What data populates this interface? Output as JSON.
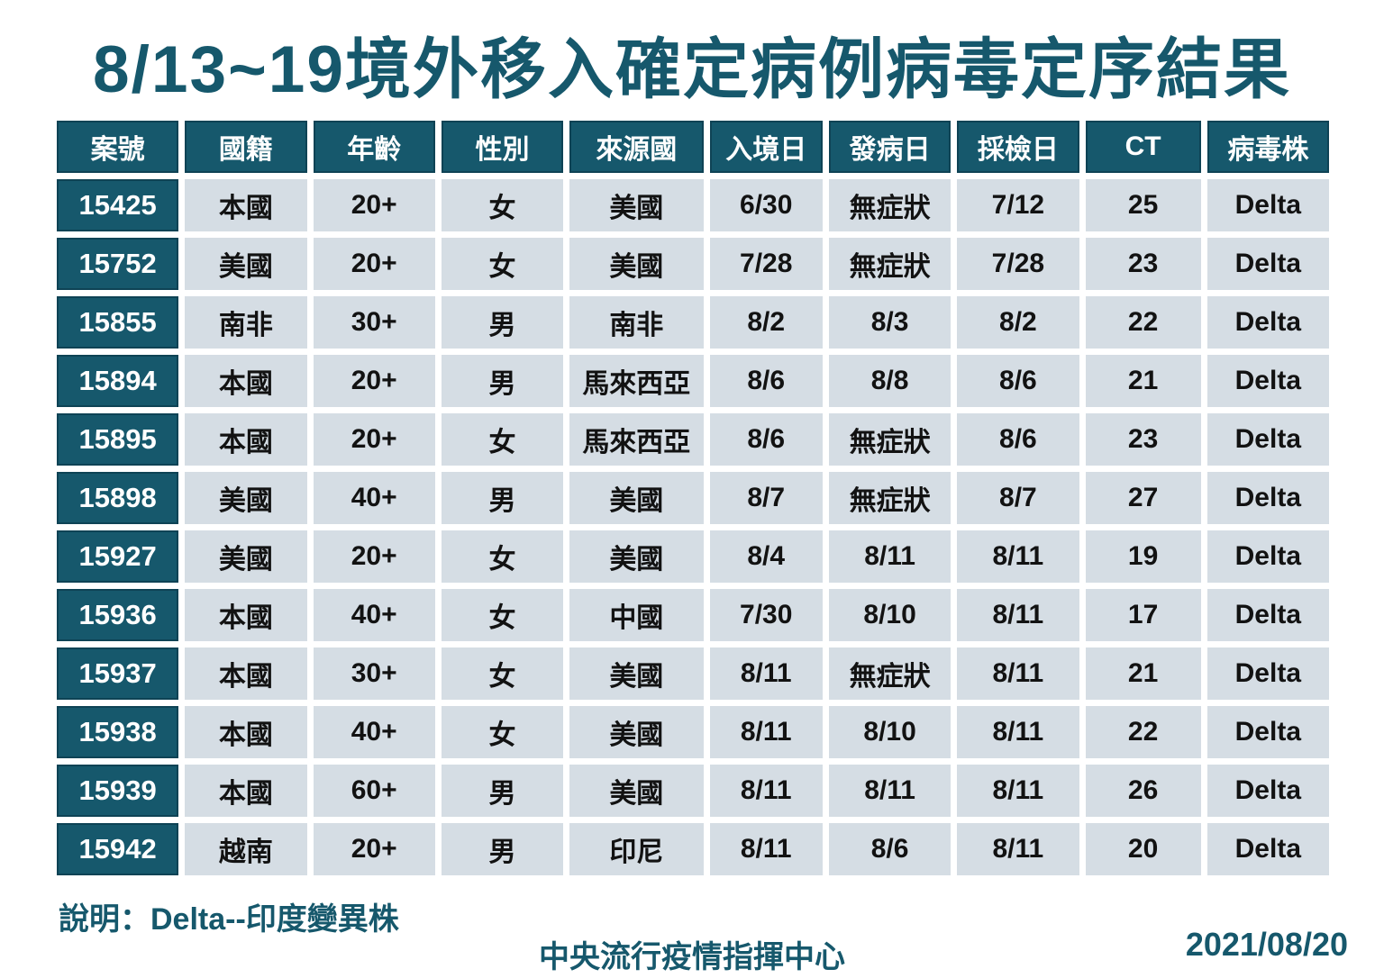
{
  "page": {
    "title": "8/13~19境外移入確定病例病毒定序結果",
    "note": "說明：Delta--印度變異株",
    "org": "中央流行疫情指揮中心",
    "date": "2021/08/20"
  },
  "colors": {
    "teal": "#16586c",
    "teal_edge": "#0e4355",
    "cell_bg": "#d5dde4",
    "text": "#121212",
    "background": "#ffffff"
  },
  "table": {
    "headers": [
      "案號",
      "國籍",
      "年齡",
      "性別",
      "來源國",
      "入境日",
      "發病日",
      "採檢日",
      "CT",
      "病毒株"
    ],
    "rows": [
      [
        "15425",
        "本國",
        "20+",
        "女",
        "美國",
        "6/30",
        "無症狀",
        "7/12",
        "25",
        "Delta"
      ],
      [
        "15752",
        "美國",
        "20+",
        "女",
        "美國",
        "7/28",
        "無症狀",
        "7/28",
        "23",
        "Delta"
      ],
      [
        "15855",
        "南非",
        "30+",
        "男",
        "南非",
        "8/2",
        "8/3",
        "8/2",
        "22",
        "Delta"
      ],
      [
        "15894",
        "本國",
        "20+",
        "男",
        "馬來西亞",
        "8/6",
        "8/8",
        "8/6",
        "21",
        "Delta"
      ],
      [
        "15895",
        "本國",
        "20+",
        "女",
        "馬來西亞",
        "8/6",
        "無症狀",
        "8/6",
        "23",
        "Delta"
      ],
      [
        "15898",
        "美國",
        "40+",
        "男",
        "美國",
        "8/7",
        "無症狀",
        "8/7",
        "27",
        "Delta"
      ],
      [
        "15927",
        "美國",
        "20+",
        "女",
        "美國",
        "8/4",
        "8/11",
        "8/11",
        "19",
        "Delta"
      ],
      [
        "15936",
        "本國",
        "40+",
        "女",
        "中國",
        "7/30",
        "8/10",
        "8/11",
        "17",
        "Delta"
      ],
      [
        "15937",
        "本國",
        "30+",
        "女",
        "美國",
        "8/11",
        "無症狀",
        "8/11",
        "21",
        "Delta"
      ],
      [
        "15938",
        "本國",
        "40+",
        "女",
        "美國",
        "8/11",
        "8/10",
        "8/11",
        "22",
        "Delta"
      ],
      [
        "15939",
        "本國",
        "60+",
        "男",
        "美國",
        "8/11",
        "8/11",
        "8/11",
        "26",
        "Delta"
      ],
      [
        "15942",
        "越南",
        "20+",
        "男",
        "印尼",
        "8/11",
        "8/6",
        "8/11",
        "20",
        "Delta"
      ]
    ]
  }
}
